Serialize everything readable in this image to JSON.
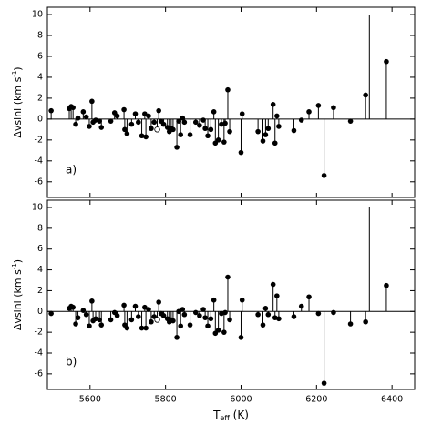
{
  "chart_data": [
    {
      "type": "stem",
      "label": "a)",
      "ylabel": [
        "Δvsini (km s",
        "-1",
        ")"
      ],
      "xlim": [
        5487,
        6460
      ],
      "xticks": [
        5600,
        5800,
        6000,
        6200,
        6400
      ],
      "show_xticklabels": false,
      "ylim": [
        -7.5,
        10.7
      ],
      "yticks": [
        -6,
        -4,
        -2,
        0,
        2,
        4,
        6,
        8,
        10
      ],
      "series": [
        {
          "color": "#000000",
          "marker": "filled",
          "x": [
            5497,
            5545,
            5550,
            5555,
            5562,
            5568,
            5582,
            5590,
            5598,
            5605,
            5608,
            5615,
            5625,
            5630,
            5655,
            5665,
            5672,
            5690,
            5692,
            5698,
            5710,
            5720,
            5728,
            5737,
            5745,
            5748,
            5755,
            5762,
            5770,
            5782,
            5788,
            5795,
            5805,
            5810,
            5815,
            5820,
            5830,
            5835,
            5840,
            5845,
            5850,
            5865,
            5880,
            5890,
            5900,
            5905,
            5912,
            5920,
            5928,
            5932,
            5940,
            5948,
            5955,
            5958,
            5965,
            5970,
            6000,
            6003,
            6045,
            6058,
            6065,
            6072,
            6085,
            6090,
            6095,
            6100,
            6140,
            6160,
            6180,
            6205,
            6220,
            6245,
            6290,
            6330,
            6385
          ],
          "values": [
            0.8,
            1.0,
            1.2,
            1.1,
            -0.5,
            0.1,
            0.7,
            0.2,
            -0.7,
            1.7,
            -0.3,
            -0.1,
            -0.2,
            -0.8,
            -0.2,
            0.6,
            0.3,
            0.9,
            -1.0,
            -1.4,
            -0.5,
            0.5,
            -0.3,
            -1.6,
            0.5,
            -1.7,
            0.3,
            -0.9,
            -0.3,
            0.8,
            -0.2,
            -0.5,
            -0.8,
            -1.2,
            -0.9,
            -1.0,
            -2.7,
            -0.2,
            -1.5,
            0.1,
            -0.3,
            -1.5,
            -0.3,
            -0.6,
            -0.1,
            -0.9,
            -1.6,
            -1.0,
            0.7,
            -2.3,
            -2.0,
            -0.5,
            -2.2,
            -0.4,
            2.8,
            -1.2,
            -3.2,
            0.5,
            -1.2,
            -2.1,
            -1.5,
            -0.9,
            1.4,
            -2.3,
            0.3,
            -0.7,
            -1.1,
            -0.1,
            0.7,
            1.3,
            -5.4,
            1.1,
            -0.2,
            2.3,
            5.5
          ]
        },
        {
          "color": "#000000",
          "marker": "open",
          "x": [
            5778
          ],
          "values": [
            -1.0
          ]
        },
        {
          "color": "#000000",
          "marker": "none",
          "x": [
            6340
          ],
          "values": [
            10
          ]
        }
      ]
    },
    {
      "type": "stem",
      "label": "b)",
      "ylabel": [
        "Δvsini (km s",
        "-1",
        ")"
      ],
      "xlabel": [
        "T",
        "eff",
        " (K)"
      ],
      "xlim": [
        5487,
        6460
      ],
      "xticks": [
        5600,
        5800,
        6000,
        6200,
        6400
      ],
      "show_xticklabels": true,
      "ylim": [
        -7.5,
        10.7
      ],
      "yticks": [
        -6,
        -4,
        -2,
        0,
        2,
        4,
        6,
        8,
        10
      ],
      "series": [
        {
          "color": "#000000",
          "marker": "filled",
          "x": [
            5497,
            5545,
            5550,
            5555,
            5562,
            5568,
            5582,
            5590,
            5598,
            5605,
            5608,
            5615,
            5625,
            5630,
            5655,
            5665,
            5672,
            5690,
            5692,
            5698,
            5710,
            5720,
            5728,
            5737,
            5745,
            5748,
            5755,
            5762,
            5770,
            5782,
            5788,
            5795,
            5805,
            5810,
            5815,
            5820,
            5830,
            5835,
            5840,
            5845,
            5850,
            5865,
            5880,
            5890,
            5900,
            5905,
            5912,
            5920,
            5928,
            5932,
            5940,
            5948,
            5955,
            5958,
            5965,
            5970,
            6000,
            6003,
            6045,
            6058,
            6065,
            6072,
            6085,
            6090,
            6095,
            6100,
            6140,
            6160,
            6180,
            6205,
            6220,
            6245,
            6290,
            6330,
            6385
          ],
          "values": [
            -0.2,
            0.3,
            0.5,
            0.4,
            -1.2,
            -0.6,
            0.1,
            -0.3,
            -1.4,
            1.0,
            -0.9,
            -0.7,
            -0.8,
            -1.3,
            -0.8,
            -0.1,
            -0.4,
            0.6,
            -1.3,
            -1.6,
            -0.8,
            0.5,
            -0.5,
            -1.6,
            0.4,
            -1.6,
            0.2,
            -1.0,
            -0.5,
            0.9,
            -0.2,
            -0.4,
            -0.7,
            -1.0,
            -0.8,
            -0.9,
            -2.5,
            0,
            -1.4,
            0.2,
            -0.3,
            -1.3,
            -0.1,
            -0.4,
            0.2,
            -0.6,
            -1.4,
            -0.7,
            1.1,
            -2.1,
            -1.8,
            -0.2,
            -2.0,
            -0.1,
            3.3,
            -0.8,
            -2.5,
            1.1,
            -0.3,
            -1.3,
            0.3,
            -0.3,
            2.6,
            -0.6,
            1.5,
            -0.7,
            -0.5,
            0.5,
            1.4,
            -0.2,
            -6.9,
            -0.1,
            -1.2,
            -1.0,
            2.5
          ]
        },
        {
          "color": "#000000",
          "marker": "open",
          "x": [
            5778
          ],
          "values": [
            -0.8
          ]
        },
        {
          "color": "#000000",
          "marker": "none",
          "x": [
            6340
          ],
          "values": [
            10
          ]
        }
      ]
    }
  ]
}
